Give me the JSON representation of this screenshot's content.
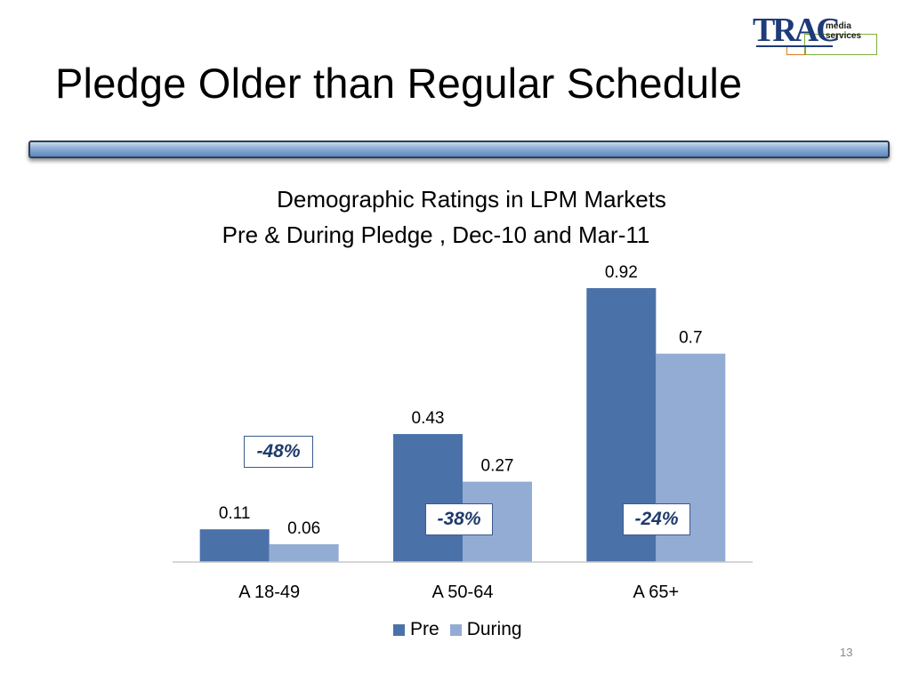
{
  "slide": {
    "title": "Pledge Older than Regular Schedule",
    "page_number": "13"
  },
  "logo": {
    "mark": "TRAC",
    "tagline": "media services",
    "colors": {
      "mark": "#1f3a78",
      "orange": "#e07a1f",
      "green": "#7fb03a"
    }
  },
  "chart_data": {
    "type": "bar",
    "title_lines": [
      "Demographic  Ratings in LPM Markets",
      "Pre & During Pledge , Dec-10 and Mar-11"
    ],
    "categories": [
      "A 18-49",
      "A 50-64",
      "A 65+"
    ],
    "series": [
      {
        "name": "Pre",
        "values": [
          0.11,
          0.43,
          0.92
        ],
        "labels": [
          "0.11",
          "0.43",
          "0.92"
        ],
        "color": "#4a72a8"
      },
      {
        "name": "During",
        "values": [
          0.06,
          0.27,
          0.7
        ],
        "labels": [
          "0.06",
          "0.27",
          "0.7"
        ],
        "color": "#93acd3"
      }
    ],
    "ylim": [
      0,
      0.92
    ],
    "grid": false,
    "legend_position": "bottom",
    "annotations": [
      "-48%",
      "-38%",
      "-24%"
    ]
  }
}
